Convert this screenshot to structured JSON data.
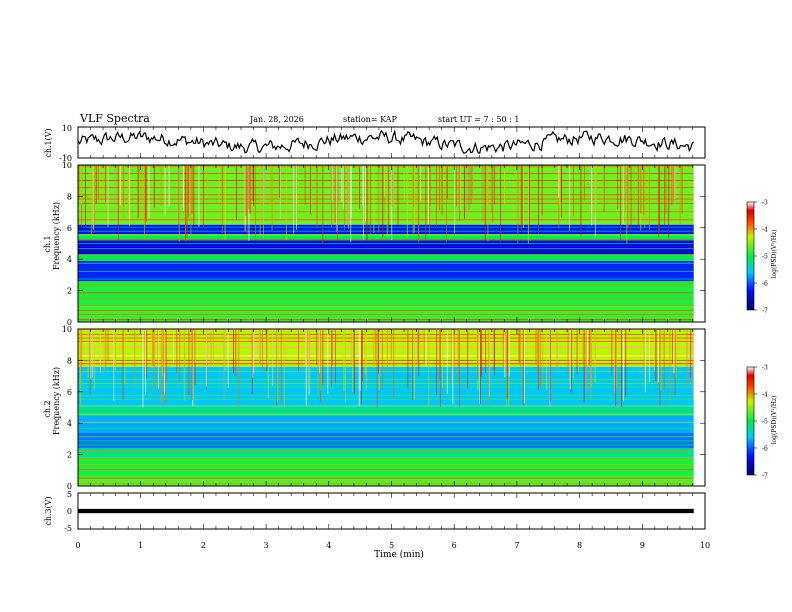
{
  "header": {
    "title": "VLF Spectra",
    "date": "Jan. 28, 2026",
    "station": "station= KAP",
    "start_ut": "start  UT =   7 : 50 : 1"
  },
  "chart_data": [
    {
      "type": "line",
      "name": "ch1-waveform",
      "ylabel": "ch.1(V)",
      "ylim": [
        -10,
        10
      ],
      "yticks": [
        "10",
        "-10"
      ],
      "xlim": [
        0,
        10
      ],
      "series": [
        {
          "name": "ch.1 amplitude",
          "x_range": [
            0,
            9.82
          ],
          "level": 0.1,
          "noise": 3.2
        }
      ]
    },
    {
      "type": "heatmap",
      "name": "ch1-spectrogram",
      "ylabel": [
        "ch.1",
        "Frequency  (kHz)"
      ],
      "ylim": [
        0,
        10
      ],
      "yticks": [
        "0",
        "2",
        "4",
        "6",
        "8",
        "10"
      ],
      "xlim": [
        0,
        9.82
      ],
      "colorbar": {
        "label": "log(PSD)(V²/Hz)",
        "range": [
          -7,
          -3
        ],
        "ticks": [
          "-3",
          "-4",
          "-5",
          "-6",
          "-7"
        ]
      },
      "bands": [
        {
          "from": 0,
          "to": 1.0,
          "value": -4.8
        },
        {
          "from": 1.0,
          "to": 2.6,
          "value": -4.9
        },
        {
          "from": 2.6,
          "to": 3.9,
          "value": -6.2
        },
        {
          "from": 3.9,
          "to": 4.3,
          "value": -5.0
        },
        {
          "from": 4.3,
          "to": 5.2,
          "value": -6.5
        },
        {
          "from": 5.2,
          "to": 5.6,
          "value": -5.0
        },
        {
          "from": 5.6,
          "to": 6.2,
          "value": -6.3
        },
        {
          "from": 6.2,
          "to": 10.0,
          "value": -4.6
        }
      ]
    },
    {
      "type": "heatmap",
      "name": "ch2-spectrogram",
      "ylabel": [
        "ch.2",
        "Frequency  (kHz)"
      ],
      "ylim": [
        0,
        10
      ],
      "yticks": [
        "0",
        "2",
        "4",
        "6",
        "8",
        "10"
      ],
      "xlim": [
        0,
        9.82
      ],
      "colorbar": {
        "label": "log(PSD)(V²/Hz)",
        "range": [
          -7,
          -3
        ],
        "ticks": [
          "-3",
          "-4",
          "-5",
          "-6",
          "-7"
        ]
      },
      "bands": [
        {
          "from": 0,
          "to": 0.6,
          "value": -4.7
        },
        {
          "from": 0.6,
          "to": 1.8,
          "value": -4.9
        },
        {
          "from": 1.8,
          "to": 2.4,
          "value": -5.2
        },
        {
          "from": 2.4,
          "to": 3.4,
          "value": -5.9
        },
        {
          "from": 3.4,
          "to": 4.5,
          "value": -5.7
        },
        {
          "from": 4.5,
          "to": 5.0,
          "value": -5.2
        },
        {
          "from": 5.0,
          "to": 7.6,
          "value": -5.6
        },
        {
          "from": 7.6,
          "to": 10.0,
          "value": -4.3
        }
      ]
    },
    {
      "type": "line",
      "name": "ch3-waveform",
      "ylabel": "ch.3(V)",
      "ylim": [
        -5,
        5
      ],
      "yticks": [
        "5",
        "0",
        "-5"
      ],
      "xlim": [
        0,
        10
      ],
      "xlabel": "Time  (min)",
      "xticks": [
        "0",
        "1",
        "2",
        "3",
        "4",
        "5",
        "6",
        "7",
        "8",
        "9",
        "10"
      ],
      "series": [
        {
          "name": "ch.3 amplitude",
          "x_range": [
            0,
            9.82
          ],
          "band": [
            -0.6,
            0.6
          ]
        }
      ]
    }
  ]
}
